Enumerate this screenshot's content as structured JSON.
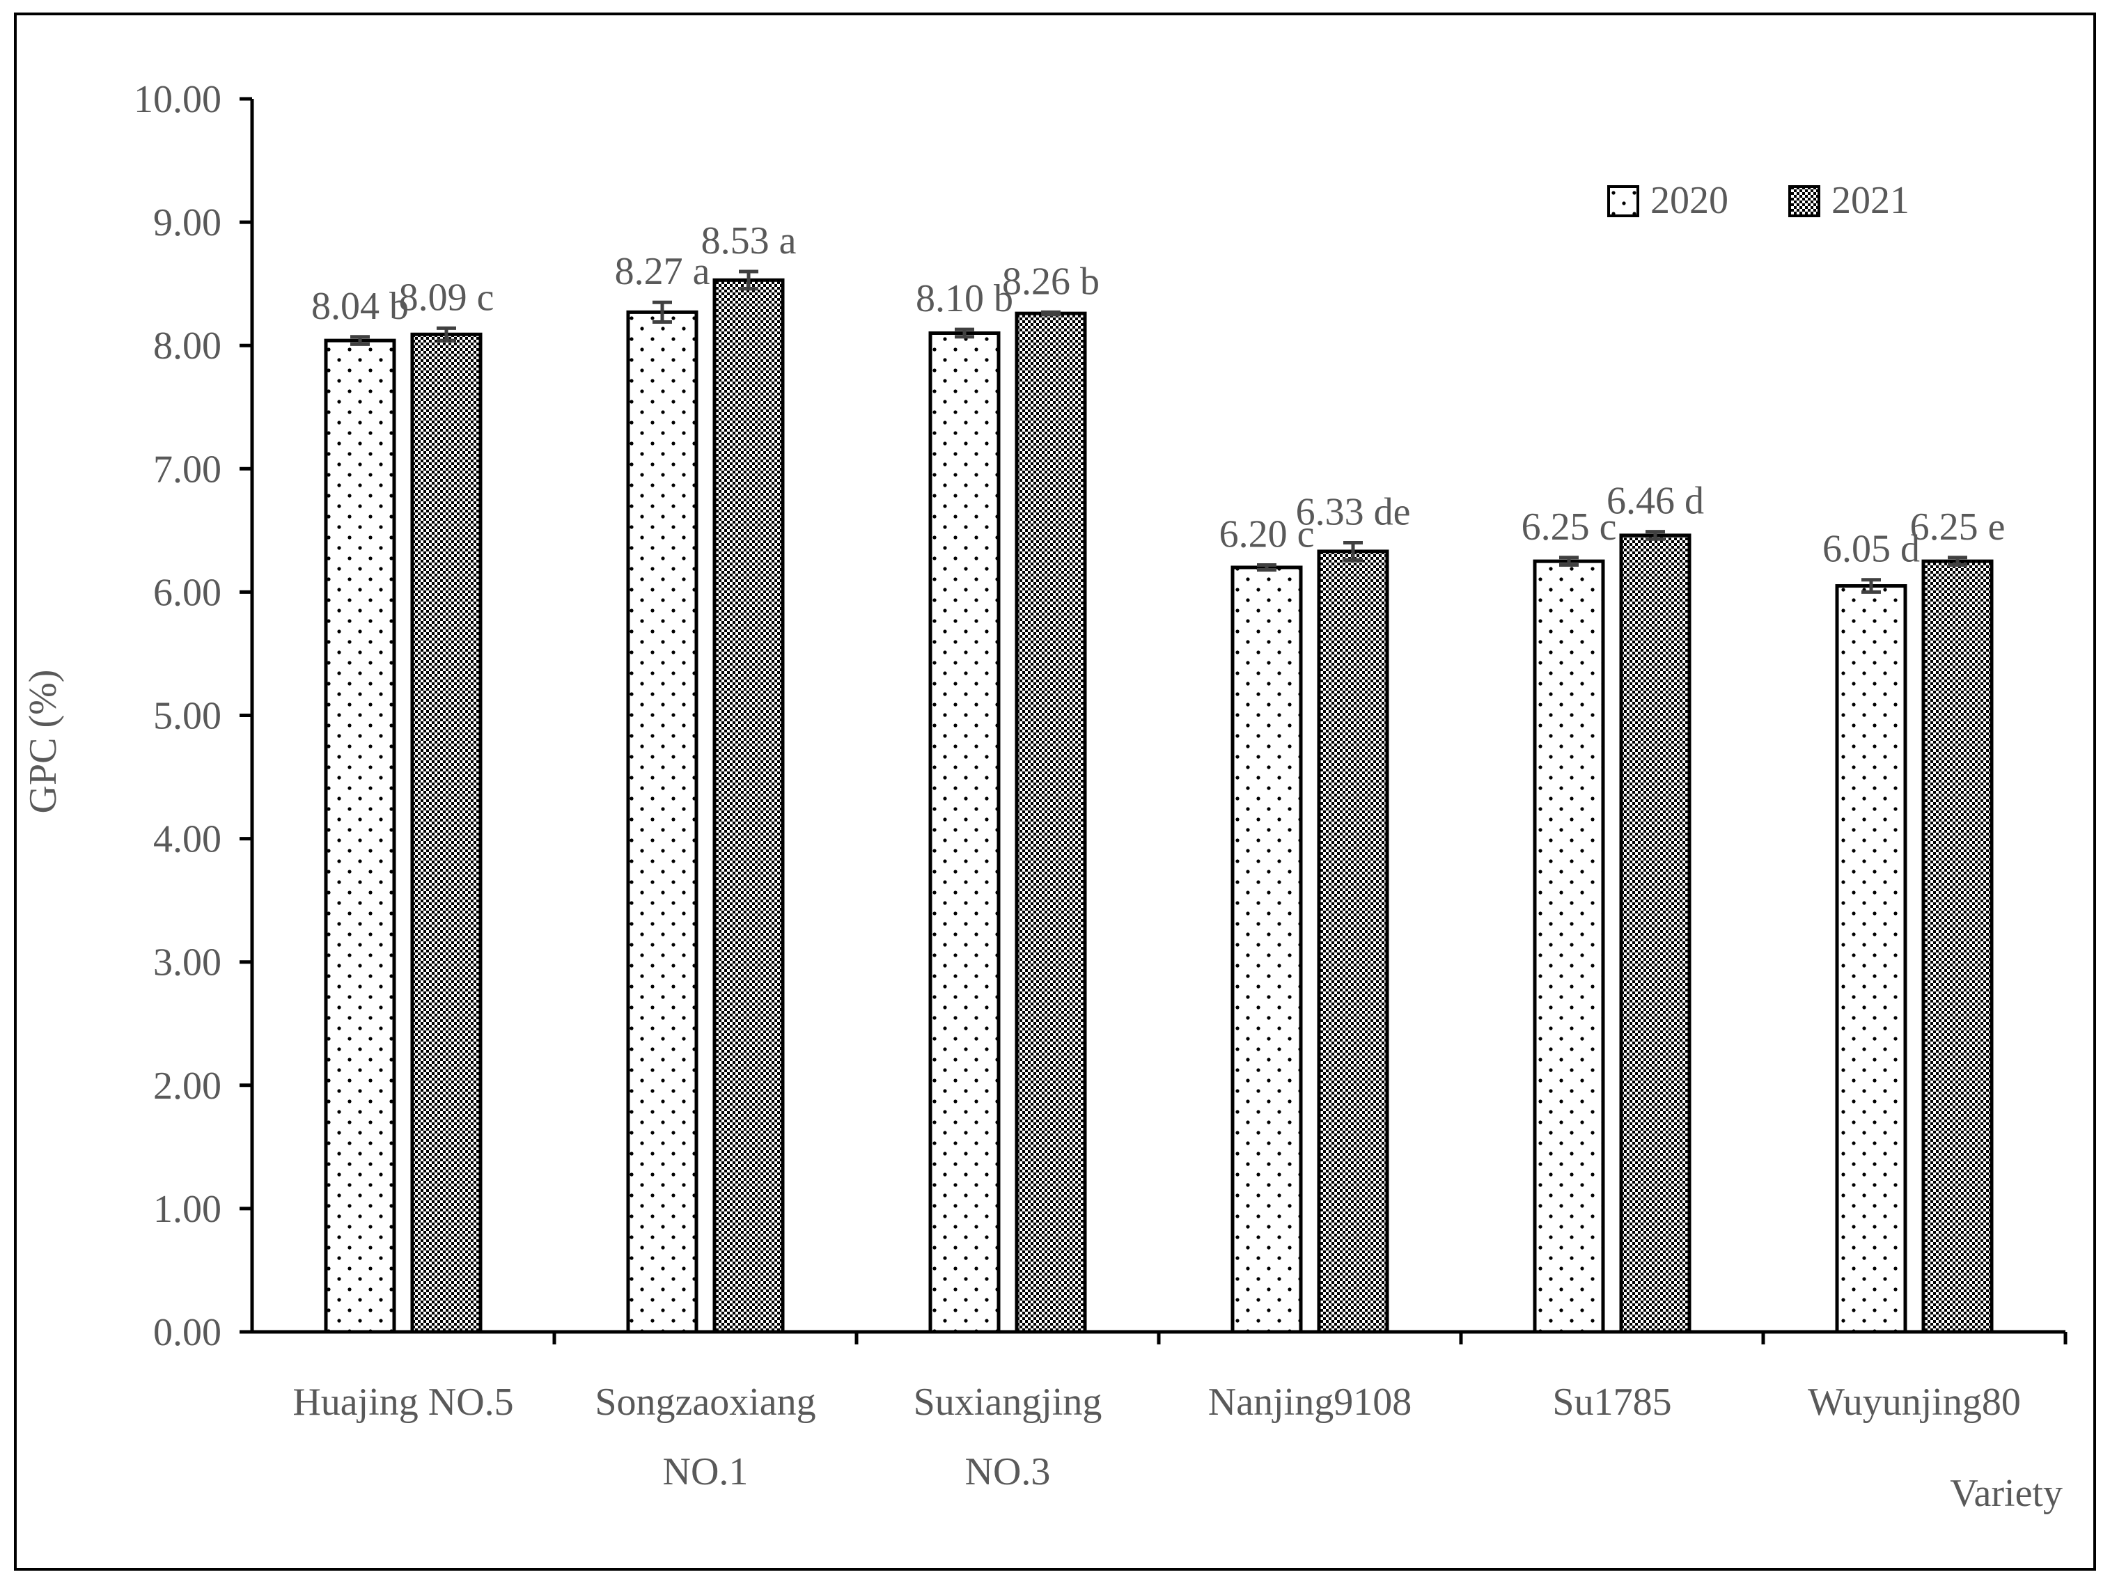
{
  "chart_data": {
    "type": "bar",
    "title": "",
    "xlabel": "Variety",
    "ylabel": "GPC (%)",
    "ylim": [
      0,
      10
    ],
    "y_ticks": [
      "0.00",
      "1.00",
      "2.00",
      "3.00",
      "4.00",
      "5.00",
      "6.00",
      "7.00",
      "8.00",
      "9.00",
      "10.00"
    ],
    "categories": [
      [
        "Huajing NO.5"
      ],
      [
        "Songzaoxiang",
        "NO.1"
      ],
      [
        "Suxiangjing",
        "NO.3"
      ],
      [
        "Nanjing9108"
      ],
      [
        "Su1785"
      ],
      [
        "Wuyunjing80"
      ]
    ],
    "series": [
      {
        "name": "2020",
        "pattern": "dots",
        "values": [
          8.04,
          8.27,
          8.1,
          6.2,
          6.25,
          6.05
        ],
        "errors": [
          0.03,
          0.08,
          0.03,
          0.02,
          0.03,
          0.05
        ],
        "labels": [
          "8.04 b",
          "8.27 a",
          "8.10 b",
          "6.20 c",
          "6.25 c",
          "6.05 d"
        ]
      },
      {
        "name": "2021",
        "pattern": "checker",
        "values": [
          8.09,
          8.53,
          8.26,
          6.33,
          6.46,
          6.25
        ],
        "errors": [
          0.05,
          0.07,
          0.01,
          0.07,
          0.03,
          0.03
        ],
        "labels": [
          "8.09 c",
          "8.53 a",
          "8.26 b",
          "6.33 de",
          "6.46 d",
          "6.25 e"
        ]
      }
    ],
    "legend_position": "top-right",
    "grid": false
  },
  "colors": {
    "axis": "#000000",
    "tick_text": "#595959",
    "bar_stroke": "#000000",
    "bar_fill": "#ffffff",
    "error_bar": "#404040",
    "frame": "#000000"
  }
}
